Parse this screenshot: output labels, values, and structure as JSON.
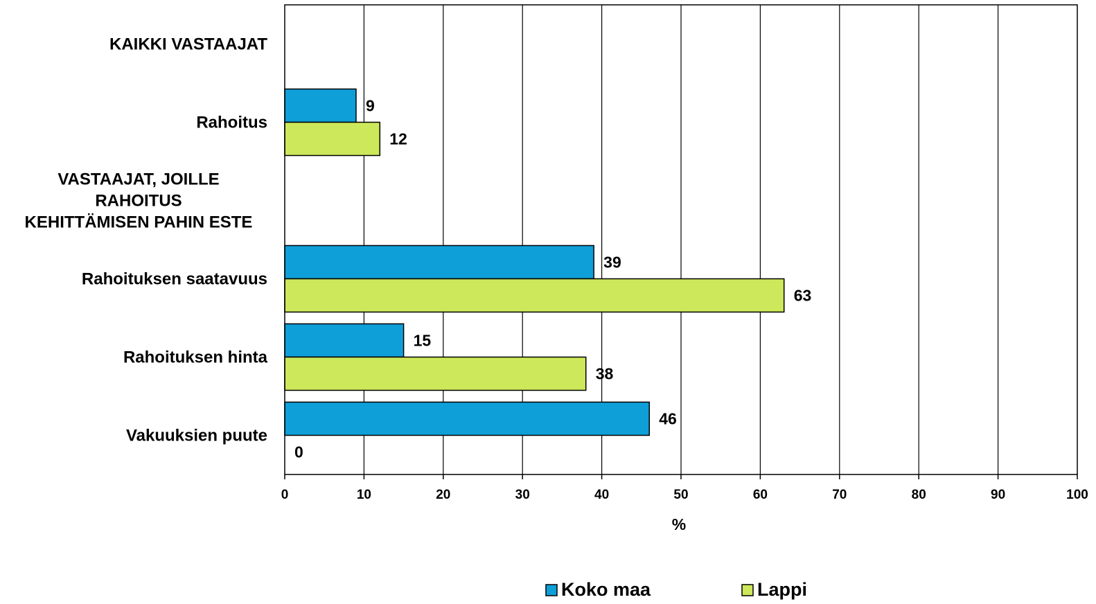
{
  "chart_data": {
    "type": "bar",
    "orientation": "horizontal",
    "categories": [
      "KAIKKI VASTAAJAT",
      "Rahoitus",
      "VASTAAJAT, JOILLE RAHOITUS KEHITTÄMISEN PAHIN ESTE",
      "Rahoituksen saatavuus",
      "Rahoituksen hinta",
      "Vakuuksien puute"
    ],
    "category_lines": [
      [
        "KAIKKI VASTAAJAT"
      ],
      [
        "Rahoitus"
      ],
      [
        "VASTAAJAT, JOILLE",
        "RAHOITUS",
        "KEHITTÄMISEN PAHIN ESTE"
      ],
      [
        "Rahoituksen saatavuus"
      ],
      [
        "Rahoituksen hinta"
      ],
      [
        "Vakuuksien puute"
      ]
    ],
    "series": [
      {
        "name": "Koko maa",
        "color": "#0f9fd8",
        "values": [
          null,
          9,
          null,
          39,
          15,
          46
        ]
      },
      {
        "name": "Lappi",
        "color": "#cde85a",
        "values": [
          null,
          12,
          null,
          63,
          38,
          0
        ]
      }
    ],
    "xlabel": "%",
    "ylabel": "",
    "xlim": [
      0,
      100
    ],
    "xticks": [
      0,
      10,
      20,
      30,
      40,
      50,
      60,
      70,
      80,
      90,
      100
    ],
    "grid": true,
    "legend_position": "bottom"
  }
}
